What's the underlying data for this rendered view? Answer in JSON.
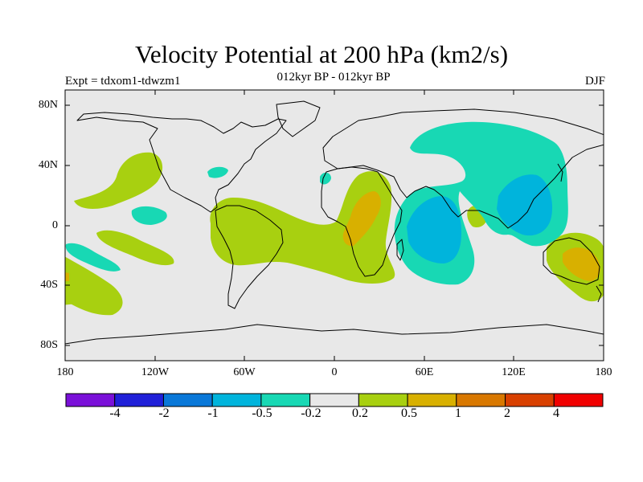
{
  "header": {
    "title": "Velocity Potential at 200 hPa (km2/s)",
    "subtitle": "012kyr BP - 012kyr BP",
    "left_label": "Expt = tdxom1-tdwzm1",
    "right_label": "DJF"
  },
  "map": {
    "projection": "cylindrical equidistant",
    "lon_range": [
      -180,
      180
    ],
    "lat_range": [
      -90,
      90
    ],
    "background_color": "#e8e8e8",
    "coastline_color": "#000000",
    "lat_ticks": [
      "80N",
      "40N",
      "0",
      "40S",
      "80S"
    ],
    "lon_ticks": [
      "180",
      "120W",
      "60W",
      "0",
      "60E",
      "120E",
      "180"
    ]
  },
  "colorbar": {
    "colors": [
      "#7a10d8",
      "#2020d8",
      "#0a78d8",
      "#00b4dc",
      "#18d8b4",
      "#e8e8e8",
      "#a8d010",
      "#d8b000",
      "#d87800",
      "#d84000",
      "#f00000"
    ],
    "labels": [
      "-4",
      "-2",
      "-1",
      "-0.5",
      "-0.2",
      "0.2",
      "0.5",
      "1",
      "2",
      "4"
    ]
  }
}
